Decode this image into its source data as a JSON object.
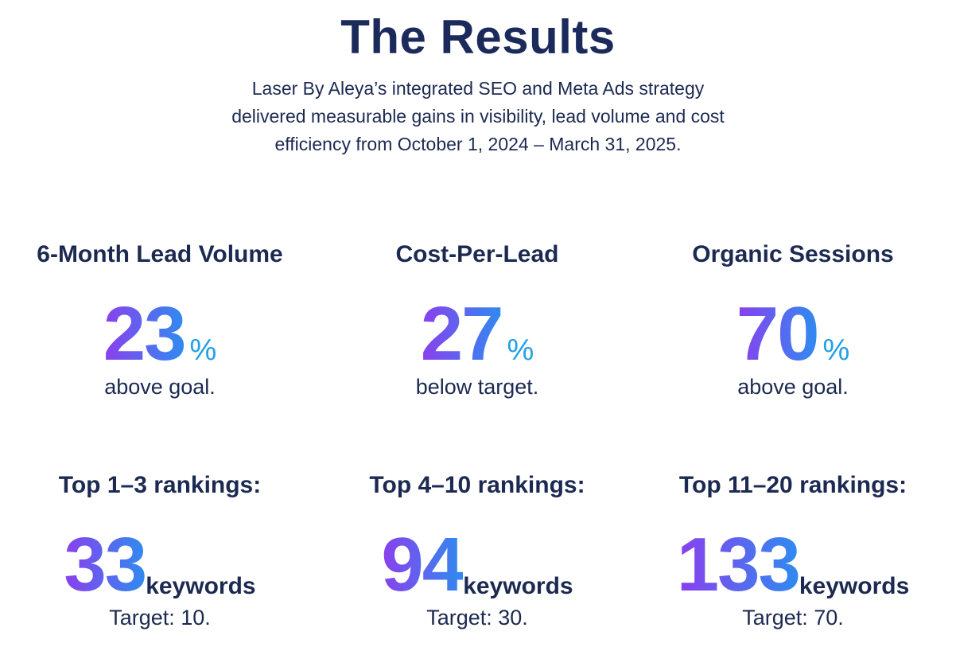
{
  "header": {
    "title": "The Results",
    "intro": "Laser By Aleya’s integrated SEO and Meta Ads strategy delivered measurable gains in visibility, lead volume and cost efficiency from October 1, 2024 – March 31, 2025."
  },
  "stats": [
    {
      "label": "6-Month Lead Volume",
      "value": 23,
      "unit": "%",
      "note": "above goal."
    },
    {
      "label": "Cost-Per-Lead",
      "value": 27,
      "unit": "%",
      "note": "below target."
    },
    {
      "label": "Organic Sessions",
      "value": 70,
      "unit": "%",
      "note": "above goal."
    }
  ],
  "rankings": [
    {
      "label": "Top 1–3 rankings:",
      "value": 33,
      "unit": "keywords",
      "note": "Target: 10."
    },
    {
      "label": "Top 4–10 rankings:",
      "value": 94,
      "unit": "keywords",
      "note": "Target: 30."
    },
    {
      "label": "Top 11–20 rankings:",
      "value": 133,
      "unit": "keywords",
      "note": "Target: 70."
    }
  ]
}
